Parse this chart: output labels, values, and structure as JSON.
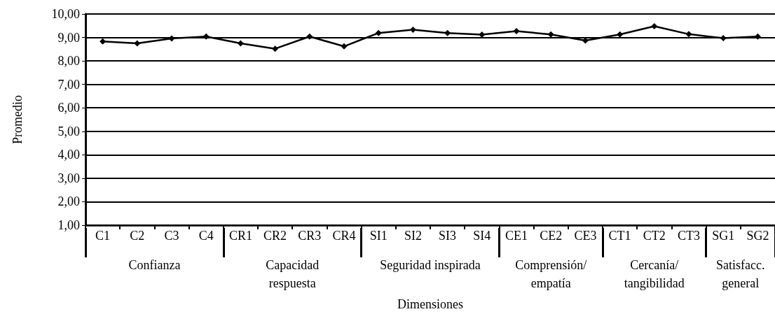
{
  "chart_data": {
    "type": "line",
    "xlabel": "Dimensiones",
    "ylabel": "Promedio",
    "categories": [
      "C1",
      "C2",
      "C3",
      "C4",
      "CR1",
      "CR2",
      "CR3",
      "CR4",
      "SI1",
      "SI2",
      "SI3",
      "SI4",
      "CE1",
      "CE2",
      "CE3",
      "CT1",
      "CT2",
      "CT3",
      "SG1",
      "SG2"
    ],
    "series": [
      {
        "color": "#000000",
        "values": [
          8.83,
          8.75,
          8.96,
          9.04,
          8.75,
          8.52,
          9.04,
          8.62,
          9.19,
          9.33,
          9.19,
          9.12,
          9.27,
          9.13,
          8.87,
          9.13,
          9.48,
          9.14,
          8.97,
          9.04
        ]
      }
    ],
    "annotations": [
      "Confianza",
      "Capacidad\nrespuesta",
      "Seguridad inspirada",
      "Comprensión/\nempatía",
      "Cercanía/\ntangibilidad",
      "Satisfacc.\ngeneral"
    ],
    "ylim": [
      1,
      10
    ],
    "yticks": [
      {
        "value": 1,
        "label": "1,00"
      },
      {
        "value": 2,
        "label": "2,00"
      },
      {
        "value": 3,
        "label": "3,00"
      },
      {
        "value": 4,
        "label": "4,00"
      },
      {
        "value": 5,
        "label": "5,00"
      },
      {
        "value": 6,
        "label": "6,00"
      },
      {
        "value": 7,
        "label": "7,00"
      },
      {
        "value": 8,
        "label": "8,00"
      },
      {
        "value": 9,
        "label": "9,00"
      },
      {
        "value": 10,
        "label": "10,00"
      }
    ],
    "grid": "y",
    "marker": "diamond",
    "line_style": "solid"
  }
}
